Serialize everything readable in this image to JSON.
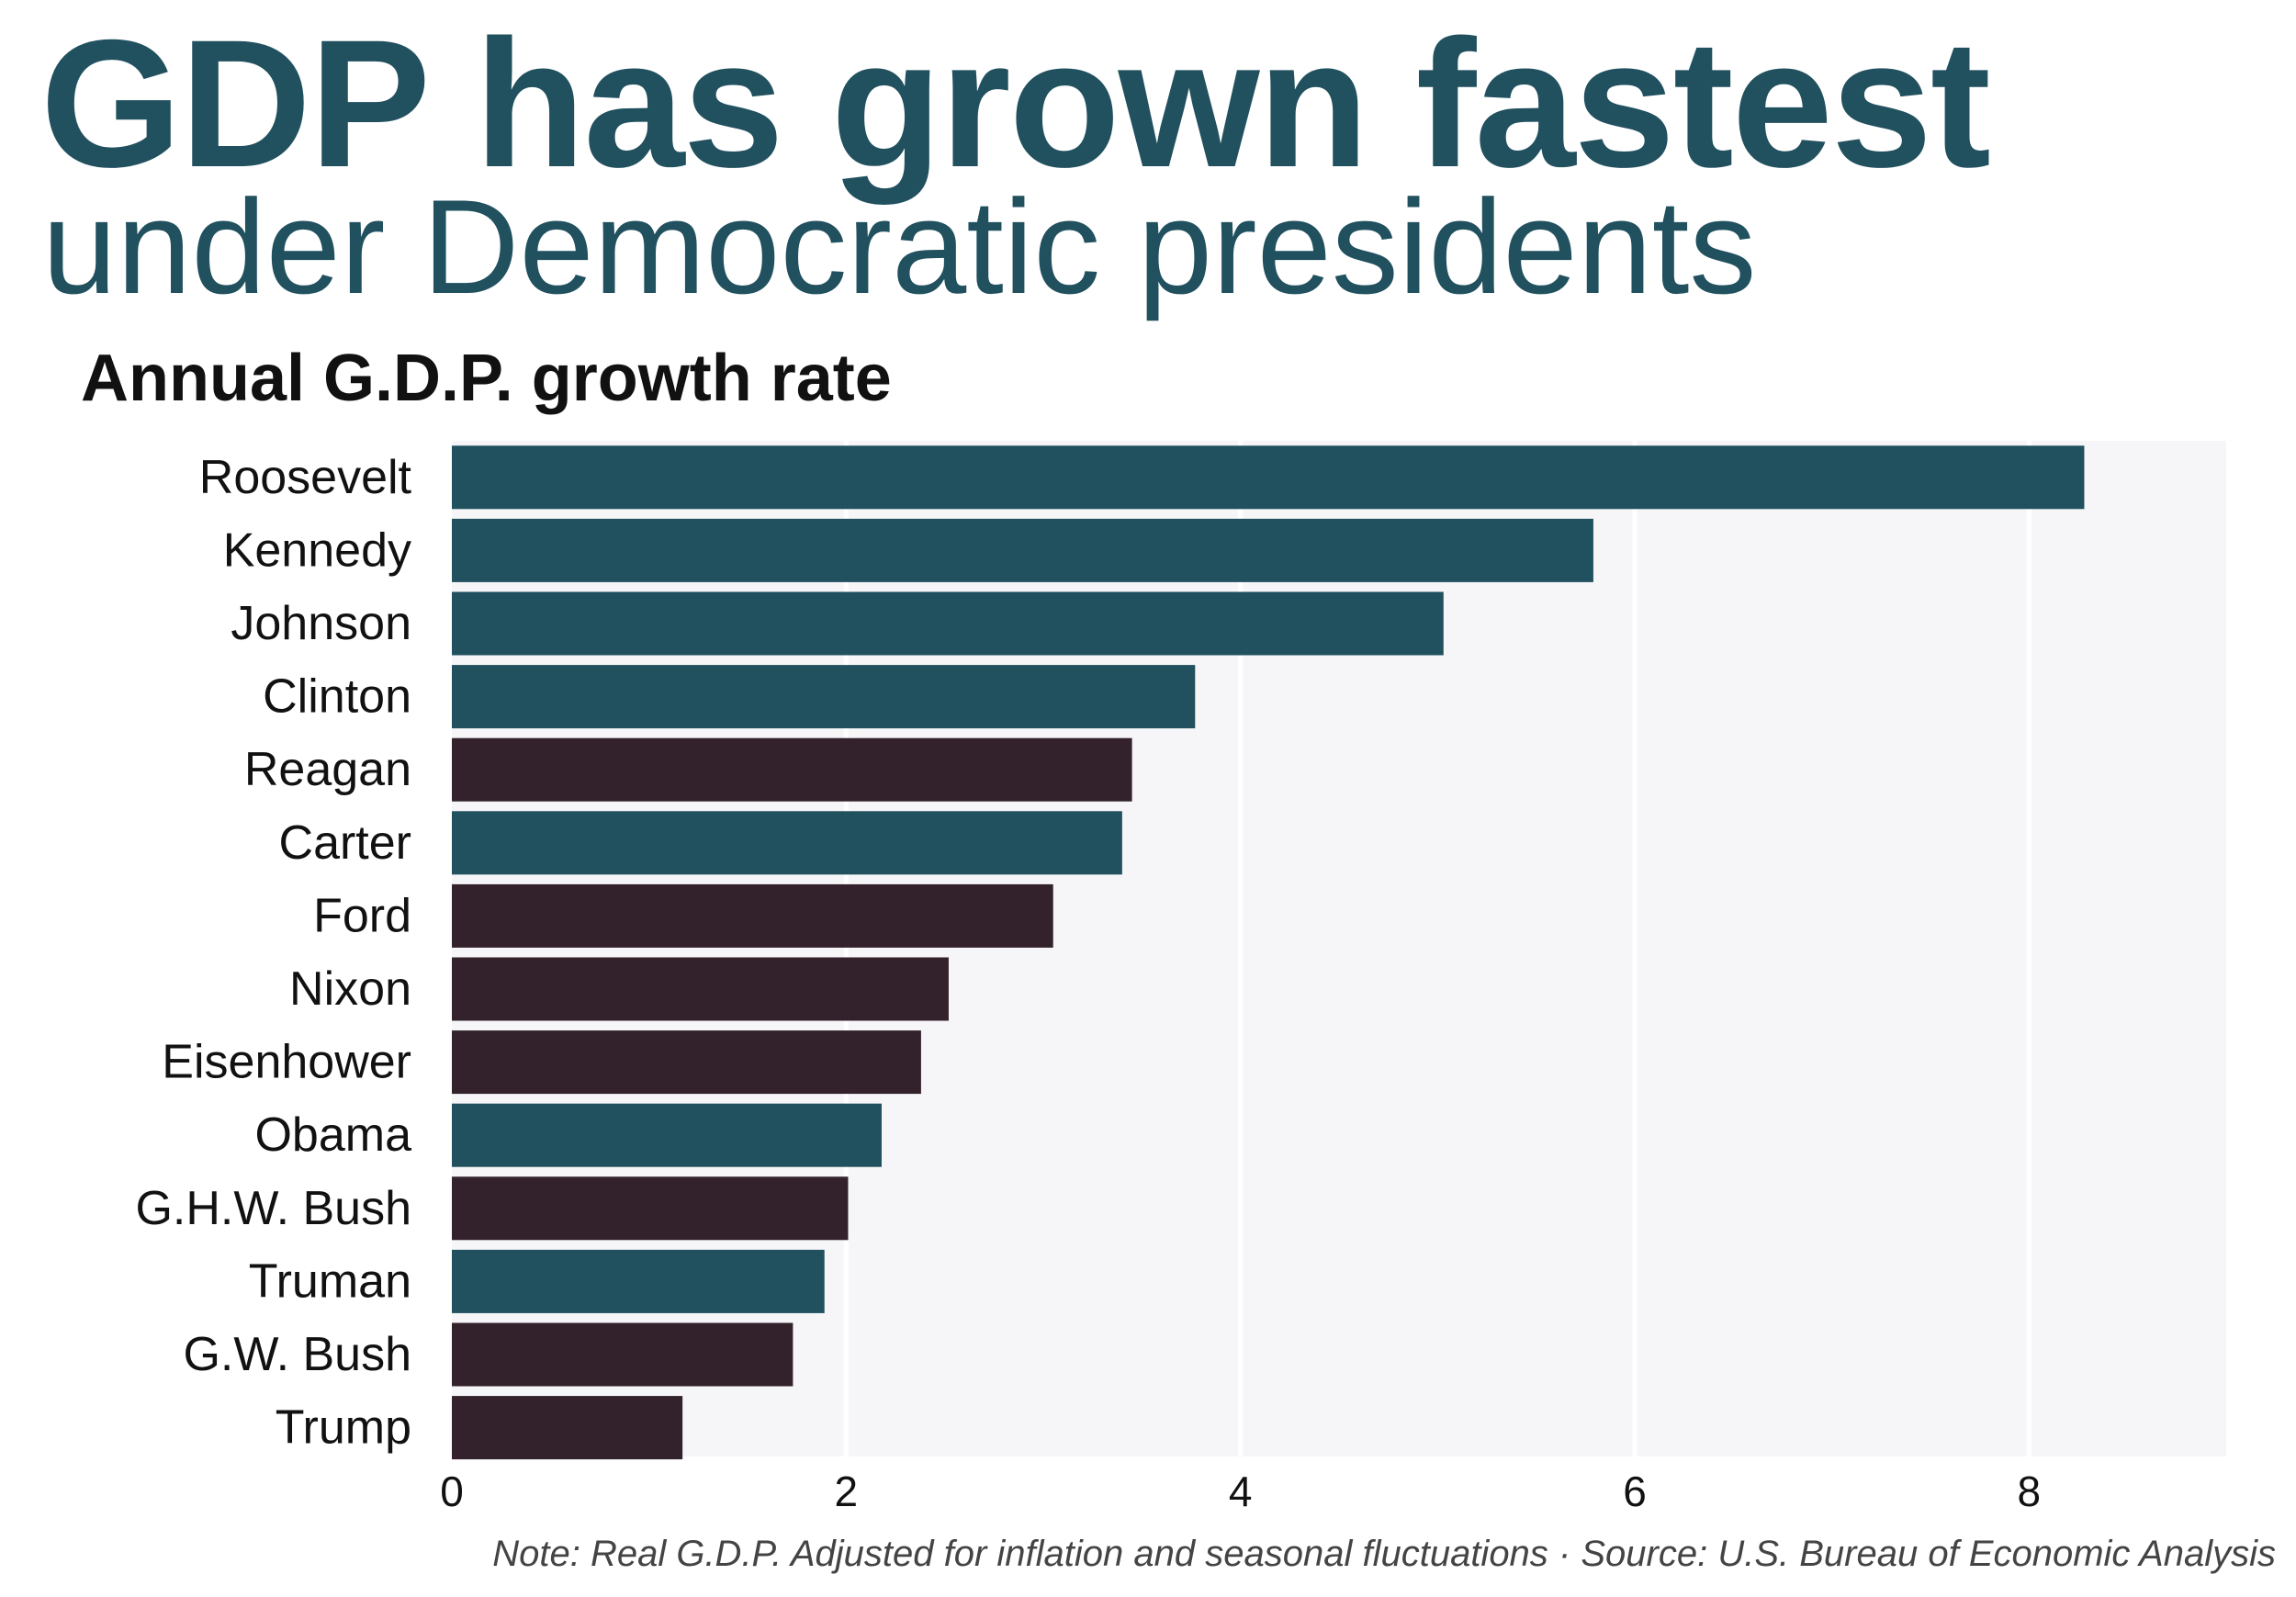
{
  "headline": "GDP has grown fastest",
  "subheadline": "under Democratic presidents",
  "colors": {
    "democrat": "#21505f",
    "republican": "#33222c",
    "panel": "#f6f6f8",
    "gridline": "#ffffff"
  },
  "chart_data": {
    "type": "bar",
    "orientation": "horizontal",
    "title": "Annual G.D.P. growth rate",
    "xlabel": "",
    "ylabel": "",
    "xlim": [
      0,
      9
    ],
    "xticks": [
      0,
      2,
      4,
      6,
      8
    ],
    "grid": true,
    "categories": [
      "Roosevelt",
      "Kennedy",
      "Johnson",
      "Clinton",
      "Reagan",
      "Carter",
      "Ford",
      "Nixon",
      "Eisenhower",
      "Obama",
      "G.H.W. Bush",
      "Truman",
      "G.W. Bush",
      "Trump"
    ],
    "values": [
      8.28,
      5.79,
      5.03,
      3.77,
      3.45,
      3.4,
      3.05,
      2.52,
      2.38,
      2.18,
      2.01,
      1.89,
      1.73,
      1.17
    ],
    "party": [
      "democrat",
      "democrat",
      "democrat",
      "democrat",
      "republican",
      "democrat",
      "republican",
      "republican",
      "republican",
      "democrat",
      "republican",
      "democrat",
      "republican",
      "republican"
    ]
  },
  "note": "Note: Real G.D.P. Adjusted for inflation and seasonal fluctuations · Source: U.S. Bureau of Economic Analysis"
}
